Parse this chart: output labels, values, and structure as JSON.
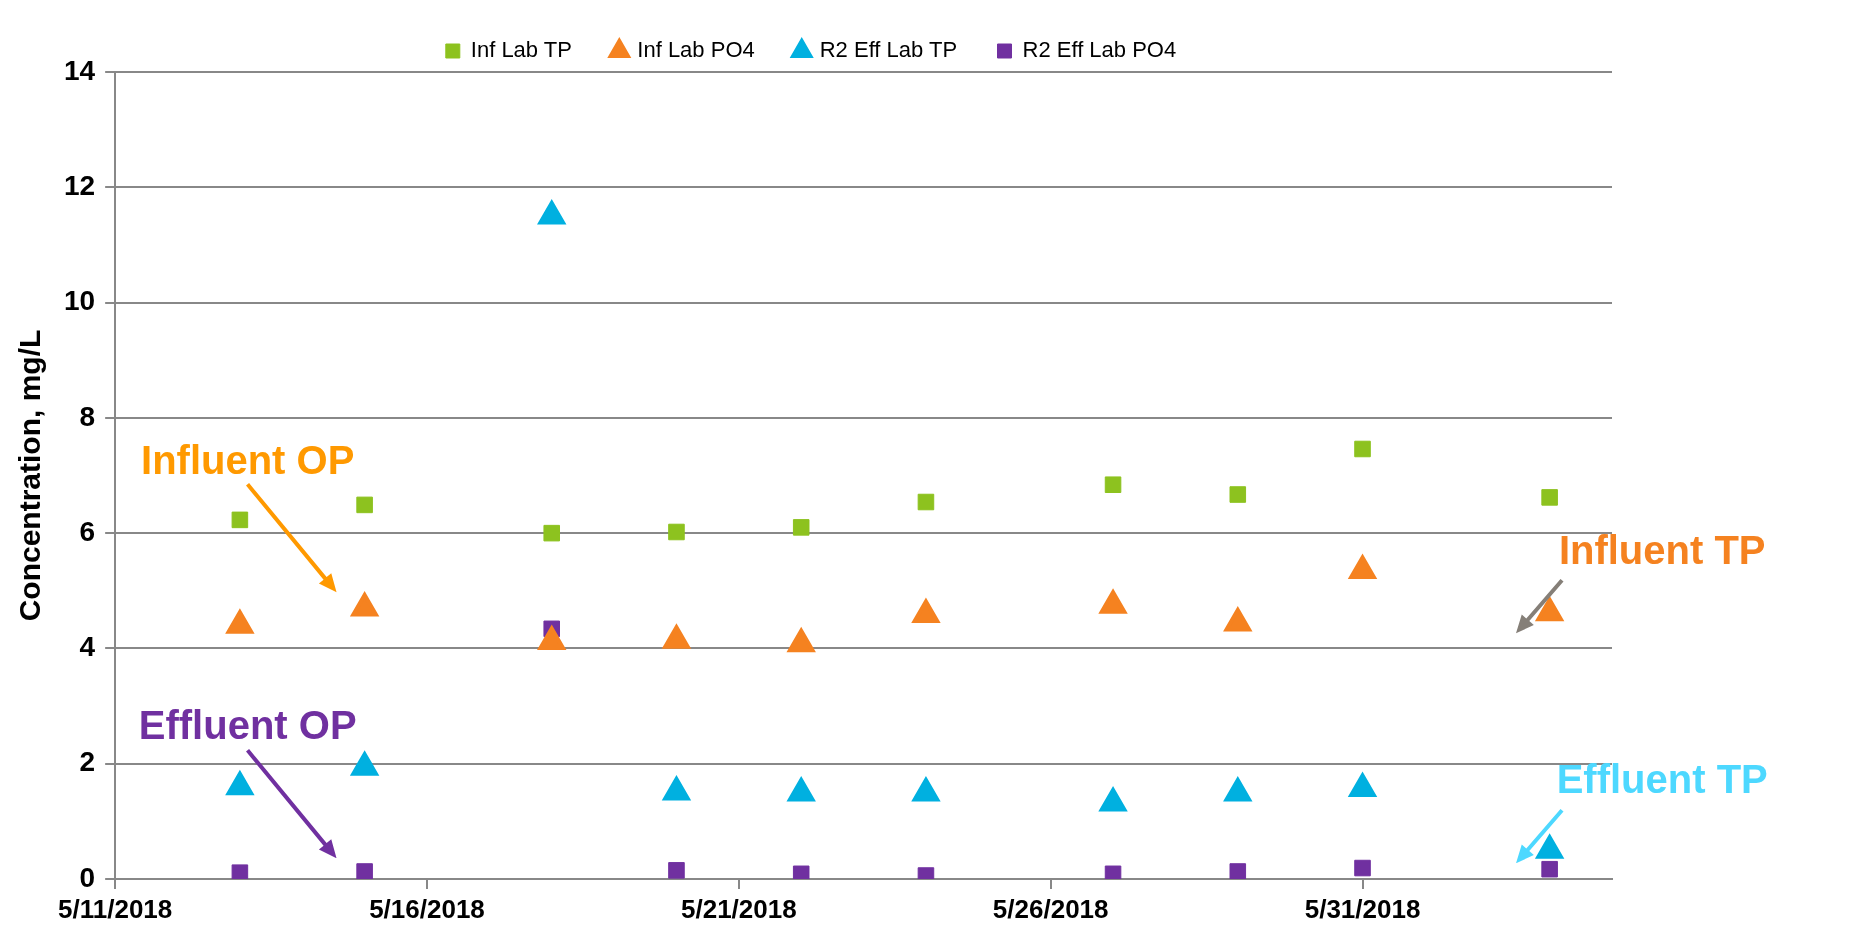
{
  "chart_data": {
    "type": "scatter",
    "ylabel": "Concentration, mg/L",
    "x": [
      "2018-05-13",
      "2018-05-15",
      "2018-05-18",
      "2018-05-20",
      "2018-05-22",
      "2018-05-24",
      "2018-05-27",
      "2018-05-29",
      "2018-05-31",
      "2018-06-03"
    ],
    "series": [
      {
        "name": "Inf Lab TP",
        "color": "#8dc21f",
        "marker": "square",
        "values": [
          6.23,
          6.49,
          6.0,
          6.02,
          6.1,
          6.54,
          6.84,
          6.67,
          7.46,
          6.62
        ]
      },
      {
        "name": "Inf Lab PO4",
        "color": "#f58220",
        "marker": "triangle",
        "values": [
          4.4,
          4.7,
          4.12,
          4.14,
          4.08,
          4.59,
          4.75,
          4.44,
          5.35,
          4.62
        ]
      },
      {
        "name": "R2 Eff Lab TP",
        "color": "#00b0e0",
        "marker": "triangle",
        "values": [
          1.6,
          1.94,
          11.5,
          1.51,
          1.49,
          1.49,
          1.32,
          1.49,
          1.57,
          0.5
        ]
      },
      {
        "name": "R2 Eff Lab PO4",
        "color": "#7030a0",
        "marker": "square",
        "values": [
          0.11,
          0.13,
          4.34,
          0.15,
          0.09,
          0.06,
          0.09,
          0.13,
          0.19,
          0.17
        ]
      }
    ],
    "xlim": [
      "2018-05-11",
      "2018-06-04"
    ],
    "xticks": [
      {
        "value": "2018-05-11",
        "label": "5/11/2018"
      },
      {
        "value": "2018-05-16",
        "label": "5/16/2018"
      },
      {
        "value": "2018-05-21",
        "label": "5/21/2018"
      },
      {
        "value": "2018-05-26",
        "label": "5/26/2018"
      },
      {
        "value": "2018-05-31",
        "label": "5/31/2018"
      }
    ],
    "ylim": [
      0,
      14
    ],
    "yticks": [
      0,
      2,
      4,
      6,
      8,
      10,
      12,
      14
    ],
    "grid": "y",
    "legend": "top",
    "annotations": [
      "Influent OP",
      "Effluent OP",
      "Influent TP",
      "Effluent TP"
    ]
  }
}
